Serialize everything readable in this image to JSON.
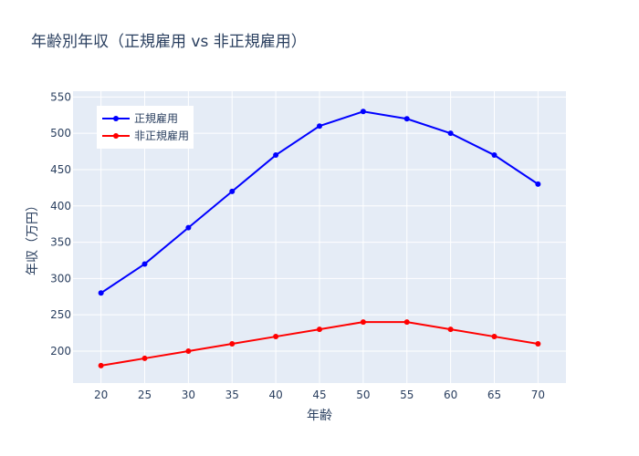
{
  "chart_data": {
    "type": "line",
    "title": "年齢別年収（正規雇用 vs 非正規雇用）",
    "xlabel": "年齢",
    "ylabel": "年収（万円）",
    "x": [
      20,
      25,
      30,
      35,
      40,
      45,
      50,
      55,
      60,
      65,
      70
    ],
    "xlim": [
      16.8,
      73.2
    ],
    "ylim": [
      156,
      558
    ],
    "yticks": [
      200,
      250,
      300,
      350,
      400,
      450,
      500,
      550
    ],
    "grid": true,
    "legend_position": "top-left",
    "background": "#e5ecf6",
    "series": [
      {
        "name": "正規雇用",
        "color": "#0000ff",
        "values": [
          280,
          320,
          370,
          420,
          470,
          510,
          530,
          520,
          500,
          470,
          430
        ]
      },
      {
        "name": "非正規雇用",
        "color": "#ff0000",
        "values": [
          180,
          190,
          200,
          210,
          220,
          230,
          240,
          240,
          230,
          220,
          210
        ]
      }
    ]
  }
}
